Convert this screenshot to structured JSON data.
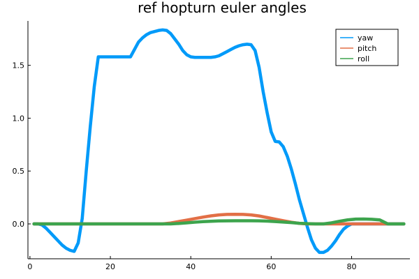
{
  "chart_data": {
    "type": "line",
    "title": "ref hopturn euler angles",
    "xlabel": "",
    "ylabel": "",
    "xlim": [
      -0.5,
      94.5
    ],
    "ylim": [
      -0.33,
      1.92
    ],
    "xticks": [
      0,
      20,
      40,
      60,
      80
    ],
    "yticks": [
      0.0,
      0.5,
      1.0,
      1.5
    ],
    "ytick_labels": [
      "0.0",
      "0.5",
      "1.0",
      "1.5"
    ],
    "grid": false,
    "legend": "top-right",
    "series": [
      {
        "name": "yaw",
        "color": "#009af9",
        "x": [
          1,
          2,
          3,
          4,
          5,
          6,
          7,
          8,
          9,
          10,
          11,
          12,
          13,
          14,
          15,
          16,
          17,
          18,
          19,
          20,
          21,
          22,
          23,
          24,
          25,
          26,
          27,
          28,
          29,
          30,
          31,
          32,
          33,
          34,
          35,
          36,
          37,
          38,
          39,
          40,
          41,
          42,
          43,
          44,
          45,
          46,
          47,
          48,
          49,
          50,
          51,
          52,
          53,
          54,
          55,
          56,
          57,
          58,
          59,
          60,
          61,
          62,
          63,
          64,
          65,
          66,
          67,
          68,
          69,
          70,
          71,
          72,
          73,
          74,
          75,
          76,
          77,
          78,
          79,
          80,
          81,
          82,
          83,
          84,
          85,
          86,
          87,
          88,
          89,
          90,
          91,
          92,
          93
        ],
        "values": [
          0,
          0,
          -0.01,
          -0.04,
          -0.08,
          -0.12,
          -0.16,
          -0.2,
          -0.23,
          -0.25,
          -0.26,
          -0.18,
          0.05,
          0.5,
          0.92,
          1.3,
          1.58,
          1.58,
          1.58,
          1.58,
          1.58,
          1.58,
          1.58,
          1.58,
          1.58,
          1.65,
          1.72,
          1.76,
          1.79,
          1.81,
          1.82,
          1.83,
          1.835,
          1.83,
          1.8,
          1.75,
          1.7,
          1.64,
          1.6,
          1.58,
          1.575,
          1.575,
          1.575,
          1.575,
          1.575,
          1.58,
          1.59,
          1.61,
          1.63,
          1.65,
          1.67,
          1.685,
          1.695,
          1.7,
          1.695,
          1.64,
          1.48,
          1.25,
          1.05,
          0.87,
          0.78,
          0.775,
          0.73,
          0.64,
          0.52,
          0.38,
          0.23,
          0.1,
          -0.03,
          -0.15,
          -0.23,
          -0.27,
          -0.27,
          -0.25,
          -0.21,
          -0.16,
          -0.1,
          -0.05,
          -0.02,
          0,
          0,
          0,
          0,
          0,
          0,
          0,
          0,
          0,
          0,
          0,
          0,
          0,
          0
        ]
      },
      {
        "name": "pitch",
        "color": "#e26f46",
        "x": [
          1,
          3,
          5,
          7,
          9,
          11,
          13,
          15,
          17,
          19,
          21,
          23,
          25,
          27,
          29,
          31,
          33,
          35,
          37,
          39,
          41,
          43,
          45,
          47,
          49,
          51,
          53,
          55,
          57,
          59,
          61,
          63,
          65,
          67,
          69,
          71,
          73,
          75,
          77,
          79,
          81,
          83,
          85,
          87,
          89,
          91,
          93
        ],
        "values": [
          0,
          0,
          0,
          0,
          0,
          0,
          0,
          0,
          0,
          0,
          0,
          0,
          0,
          0,
          0,
          0,
          0,
          0.008,
          0.022,
          0.036,
          0.05,
          0.064,
          0.076,
          0.085,
          0.09,
          0.091,
          0.09,
          0.085,
          0.075,
          0.06,
          0.045,
          0.03,
          0.016,
          0.005,
          0,
          0,
          0,
          0,
          0,
          0,
          0,
          0,
          0,
          0,
          0,
          0,
          0
        ]
      },
      {
        "name": "roll",
        "color": "#3da44d",
        "x": [
          1,
          3,
          5,
          7,
          9,
          11,
          13,
          15,
          17,
          19,
          21,
          23,
          25,
          27,
          29,
          31,
          33,
          35,
          37,
          39,
          41,
          43,
          45,
          47,
          49,
          51,
          53,
          55,
          57,
          59,
          61,
          63,
          65,
          67,
          69,
          71,
          73,
          75,
          77,
          79,
          81,
          83,
          85,
          87,
          89,
          91,
          93
        ],
        "values": [
          0,
          0,
          0,
          0,
          0,
          0,
          0,
          0,
          0,
          0,
          0,
          0,
          0,
          0,
          0,
          0,
          0,
          0,
          0.004,
          0.01,
          0.016,
          0.021,
          0.025,
          0.028,
          0.029,
          0.03,
          0.03,
          0.03,
          0.029,
          0.026,
          0.022,
          0.017,
          0.012,
          0.006,
          0.002,
          0,
          0,
          0.01,
          0.025,
          0.038,
          0.045,
          0.046,
          0.044,
          0.038,
          0,
          0,
          0
        ]
      }
    ]
  }
}
